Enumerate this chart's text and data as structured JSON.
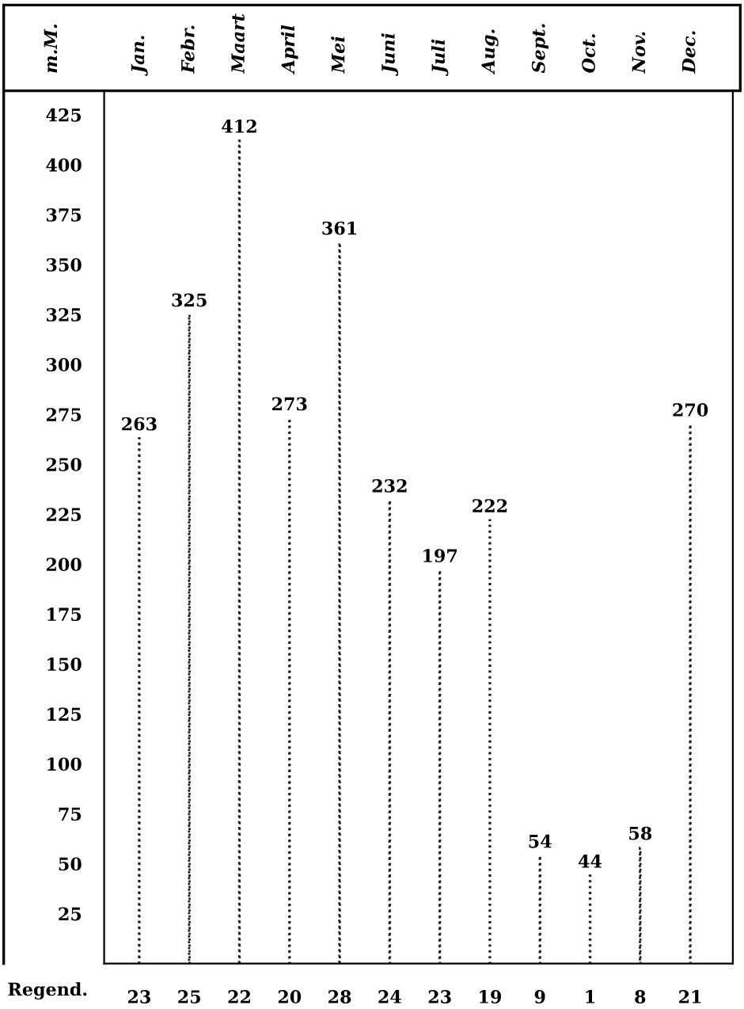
{
  "chart_data": {
    "type": "bar",
    "ylabel": "m.M.",
    "categories": [
      "Jan.",
      "Febr.",
      "Maart",
      "April",
      "Mei",
      "Juni",
      "Juli",
      "Aug.",
      "Sept.",
      "Oct.",
      "Nov.",
      "Dec."
    ],
    "values": [
      263,
      325,
      412,
      273,
      361,
      232,
      197,
      222,
      54,
      44,
      58,
      270
    ],
    "color": "#222222",
    "line_style": "dotted",
    "data_labels": true,
    "grid": false,
    "ylim": [
      0,
      437
    ],
    "yticks": [
      25,
      50,
      75,
      100,
      125,
      150,
      175,
      200,
      225,
      250,
      275,
      300,
      325,
      350,
      375,
      400,
      425
    ],
    "annotations": [
      "Regend.",
      "23",
      "25",
      "22",
      "20",
      "28",
      "24",
      "23",
      "19",
      "9",
      "1",
      "8",
      "21"
    ]
  }
}
